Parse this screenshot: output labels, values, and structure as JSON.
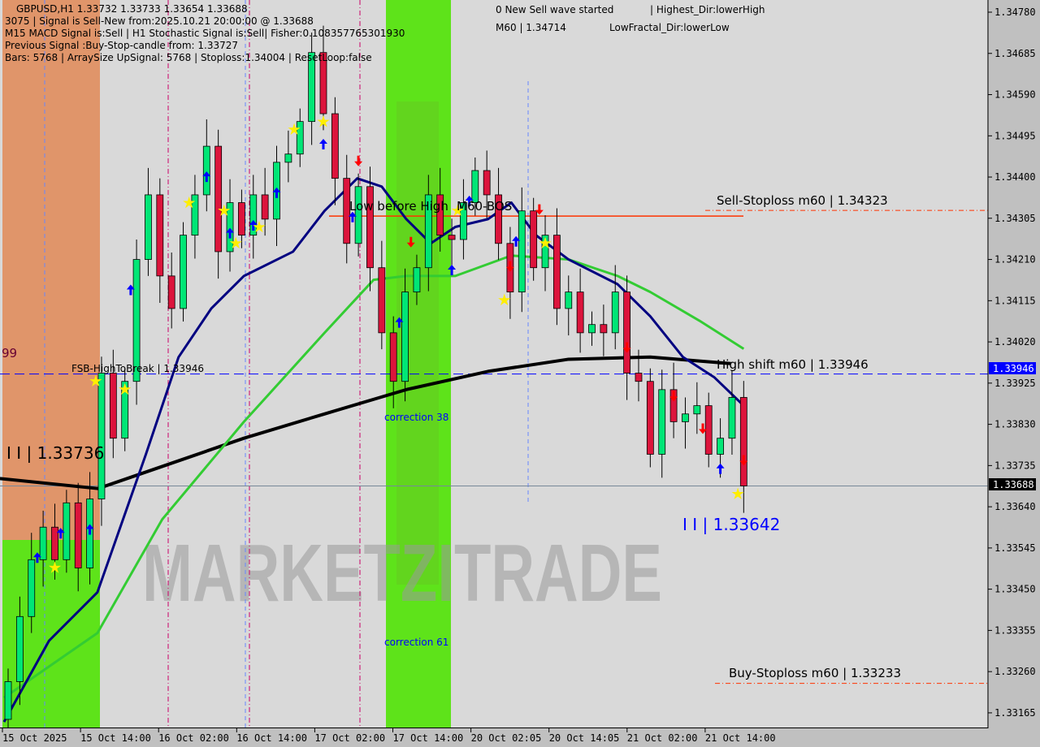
{
  "header": {
    "symbol_line": "GBPUSD,H1  1.33732 1.33733 1.33654 1.33688",
    "line2": "3075 | Signal is Sell-New from:2025.10.21 20:00:00 @ 1.33688",
    "line3": "M15 MACD Signal is:Sell | H1 Stochastic Signal is:Sell| Fisher:0.108357765301930",
    "line4": "Previous Signal :Buy-Stop-candle from: 1.33727",
    "line5": "Bars: 5768 | ArraySize UpSignal: 5768 | Stoploss:1.34004 | ResetLoop:false"
  },
  "annotations": {
    "new_sell_wave": "0 New Sell wave started",
    "highest_dir": "| Highest_Dir:lowerHigh",
    "m60_high": "M60 | 1.34714",
    "lowest_fractal": "LowFractal_Dir:lowerLow",
    "sell_stoploss": "Sell-Stoploss m60 | 1.34323",
    "high_shift": "High shift m60 | 1.33946",
    "buy_stoploss": "Buy-Stoploss m60 | 1.33233",
    "level_left": "I I | 1.33736",
    "level_right": "I I | 1.33642",
    "fsb": "FSB-HighToBreak | 1.33946",
    "correction38": "correction 38",
    "correction61": "correction 61",
    "low_before_high": "Low before High",
    "m60_bos": "M60-BOS",
    "left_cut": "99",
    "watermark": "MARKETZITRADE"
  },
  "colors": {
    "bull": "#00e676",
    "bear": "#dc143c",
    "ma_fast": "#000080",
    "ma_mid": "#33cc33",
    "ma_slow": "#000000",
    "zone_orange": "#e0956a",
    "zone_green": "#5ee31a",
    "high_shift_line": "#0000ff",
    "stoploss": "#ff3300"
  },
  "chart_data": {
    "type": "candlestick",
    "symbol": "GBPUSD",
    "timeframe": "H1",
    "ylim": [
      1.3312,
      1.348
    ],
    "y_ticks": [
      "1.34780",
      "1.34685",
      "1.34590",
      "1.34495",
      "1.34400",
      "1.34305",
      "1.34210",
      "1.34115",
      "1.34020",
      "1.33925",
      "1.33830",
      "1.33735",
      "1.33640",
      "1.33545",
      "1.33450",
      "1.33355",
      "1.33260",
      "1.33165"
    ],
    "x_ticks": [
      "15 Oct 2025",
      "15 Oct 14:00",
      "16 Oct 02:00",
      "16 Oct 14:00",
      "17 Oct 02:00",
      "17 Oct 14:00",
      "20 Oct 02:05",
      "20 Oct 14:05",
      "21 Oct 02:00",
      "21 Oct 14:00"
    ],
    "first_open": 1.3315,
    "closes": [
      1.33237,
      1.33387,
      1.33518,
      1.33593,
      1.33518,
      1.33649,
      1.33499,
      1.33658,
      1.33948,
      1.33798,
      1.33929,
      1.3421,
      1.34359,
      1.34172,
      1.34097,
      1.34266,
      1.34359,
      1.34471,
      1.34228,
      1.34341,
      1.34266,
      1.34359,
      1.34303,
      1.34434,
      1.34453,
      1.34528,
      1.34687,
      1.34546,
      1.34397,
      1.34247,
      1.34378,
      1.34191,
      1.34041,
      1.33929,
      1.34135,
      1.34191,
      1.34359,
      1.34266,
      1.34256,
      1.34341,
      1.34415,
      1.34359,
      1.34247,
      1.34135,
      1.34322,
      1.34191,
      1.34266,
      1.34097,
      1.34135,
      1.34041,
      1.3406,
      1.34041,
      1.34135,
      1.33948,
      1.33929,
      1.33761,
      1.3391,
      1.33836,
      1.33854,
      1.33873,
      1.33761,
      1.33798,
      1.33892,
      1.33688
    ],
    "ma_slow": [
      [
        -0.7,
        1.33705
      ],
      [
        7.7,
        1.33682
      ],
      [
        13.2,
        1.33733
      ],
      [
        20.2,
        1.33798
      ],
      [
        27.1,
        1.33854
      ],
      [
        34.1,
        1.3391
      ],
      [
        41.1,
        1.33952
      ],
      [
        48,
        1.3398
      ],
      [
        55,
        1.33985
      ],
      [
        61.9,
        1.3397
      ]
    ],
    "ma_fast": [
      [
        -0.35,
        1.33144
      ],
      [
        3.5,
        1.33331
      ],
      [
        7.65,
        1.33443
      ],
      [
        11.8,
        1.33761
      ],
      [
        14.6,
        1.33985
      ],
      [
        17.4,
        1.34097
      ],
      [
        20.2,
        1.34172
      ],
      [
        24.4,
        1.34228
      ],
      [
        27.1,
        1.34322
      ],
      [
        29.9,
        1.34397
      ],
      [
        32,
        1.34378
      ],
      [
        34.1,
        1.34303
      ],
      [
        36.2,
        1.34247
      ],
      [
        38.3,
        1.34285
      ],
      [
        41.1,
        1.34303
      ],
      [
        43.1,
        1.34341
      ],
      [
        45.2,
        1.34266
      ],
      [
        48,
        1.3421
      ],
      [
        52.2,
        1.34153
      ],
      [
        55,
        1.34079
      ],
      [
        57.8,
        1.33985
      ],
      [
        60.5,
        1.33938
      ],
      [
        63,
        1.33873
      ]
    ],
    "ma_mid": [
      [
        -0.35,
        1.332
      ],
      [
        7.65,
        1.33349
      ],
      [
        13.2,
        1.33611
      ],
      [
        20.2,
        1.33836
      ],
      [
        27.1,
        1.34041
      ],
      [
        31.3,
        1.34163
      ],
      [
        34.1,
        1.34172
      ],
      [
        38.3,
        1.34172
      ],
      [
        43.1,
        1.34219
      ],
      [
        48,
        1.3421
      ],
      [
        52.2,
        1.34172
      ],
      [
        55,
        1.34135
      ],
      [
        59.2,
        1.34069
      ],
      [
        63,
        1.34004
      ]
    ],
    "levels": {
      "high_shift": 1.33946,
      "current": 1.33688,
      "sell_stoploss": 1.34323,
      "buy_stoploss": 1.33233,
      "bos": 1.3431
    },
    "current_price_label": "1.33688",
    "high_shift_label": "1.33946",
    "up_arrows": [
      2.5,
      4.5,
      7,
      10.5,
      17,
      19,
      21,
      23,
      27,
      29.5,
      33.5,
      38,
      39.5,
      43.5,
      61
    ],
    "down_arrows": [
      30,
      34.5,
      43,
      45.5,
      53,
      57,
      59.5,
      63
    ],
    "stars": [
      4,
      7.5,
      10,
      15.5,
      18.5,
      19.5,
      21.5,
      24.5,
      27,
      38.5,
      42.5,
      46,
      62.5
    ]
  }
}
